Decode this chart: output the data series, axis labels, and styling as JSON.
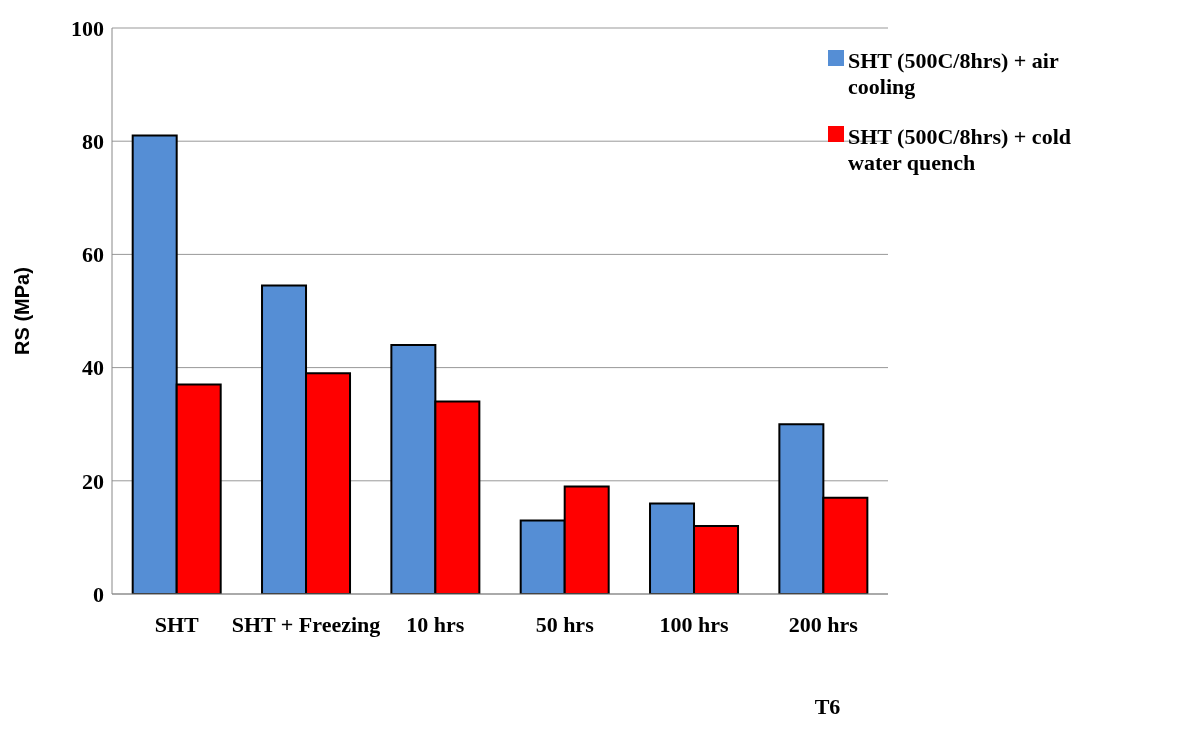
{
  "chart_data": {
    "type": "bar",
    "ylabel": "RS (MPa)",
    "categories": [
      "SHT",
      "SHT + Freezing",
      "10 hrs",
      "50 hrs",
      "100 hrs",
      "200 hrs"
    ],
    "series": [
      {
        "name": "SHT (500C/8hrs) + air cooling",
        "color": "#558ed5",
        "values": [
          81,
          54.5,
          44,
          13,
          16,
          30
        ]
      },
      {
        "name": "SHT (500C/8hrs) + cold water quench",
        "color": "#ff0000",
        "values": [
          37,
          39,
          34,
          19,
          12,
          17
        ]
      }
    ],
    "ylim": [
      0,
      100
    ],
    "yticks": [
      0,
      20,
      40,
      60,
      80,
      100
    ],
    "grid": "y",
    "legend": "top right",
    "annotations": [
      "T6"
    ]
  }
}
